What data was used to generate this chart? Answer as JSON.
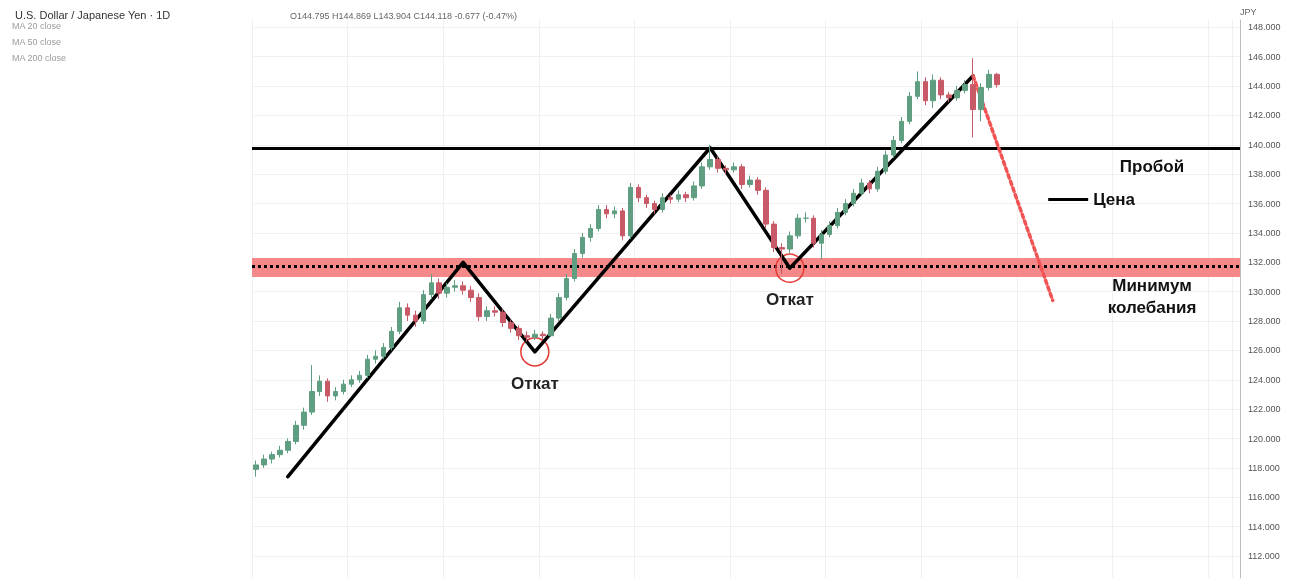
{
  "chart_data": {
    "type": "candlestick",
    "title": "U.S. Dollar / Japanese Yen · 1D",
    "subtitle": "O144.795 H144.869 L143.904 C144.118 -0.677 (-0.47%)",
    "ylabel": "JPY",
    "categories": [
      null,
      null,
      null,
      null,
      null,
      null,
      null,
      null,
      null,
      null,
      null,
      null,
      null,
      null,
      null,
      null,
      null,
      null,
      null,
      null,
      null,
      null,
      null,
      null,
      null,
      null,
      null,
      null,
      null,
      null,
      null,
      null,
      null,
      null,
      null,
      null,
      null,
      null,
      null,
      null,
      null,
      null,
      null,
      null,
      null,
      null,
      null,
      null,
      null,
      null,
      null,
      null,
      null,
      null,
      null,
      null,
      null,
      null,
      null,
      null,
      null,
      null,
      null,
      null,
      null,
      null,
      null,
      null,
      null,
      null,
      null,
      null,
      null,
      null,
      null,
      null,
      null,
      null,
      null,
      null,
      null,
      null,
      null,
      null,
      null,
      null,
      null,
      null,
      null,
      null,
      null,
      null,
      null,
      null,
      null,
      null,
      null,
      null,
      null,
      null,
      null,
      null,
      null,
      null,
      null,
      null,
      null,
      null,
      null,
      null,
      null,
      null,
      null,
      null,
      null,
      null,
      null,
      null,
      null,
      null,
      null,
      null,
      null,
      null
    ],
    "ohlc": [
      [
        117.9,
        118.5,
        117.4,
        118.2
      ],
      [
        118.2,
        118.9,
        118.0,
        118.6
      ],
      [
        118.6,
        119.1,
        118.3,
        118.9
      ],
      [
        118.9,
        119.5,
        118.7,
        119.2
      ],
      [
        119.2,
        120.0,
        119.0,
        119.8
      ],
      [
        119.8,
        121.2,
        119.6,
        120.9
      ],
      [
        120.9,
        122.1,
        120.6,
        121.8
      ],
      [
        121.8,
        125.0,
        121.6,
        123.2
      ],
      [
        123.2,
        124.3,
        122.9,
        123.9
      ],
      [
        123.9,
        124.1,
        122.5,
        122.9
      ],
      [
        122.9,
        123.5,
        122.6,
        123.2
      ],
      [
        123.2,
        124.0,
        123.0,
        123.7
      ],
      [
        123.7,
        124.3,
        123.5,
        124.0
      ],
      [
        124.0,
        124.6,
        123.8,
        124.3
      ],
      [
        124.3,
        125.7,
        124.1,
        125.4
      ],
      [
        125.4,
        126.0,
        125.1,
        125.6
      ],
      [
        125.6,
        126.5,
        125.4,
        126.2
      ],
      [
        126.2,
        127.6,
        126.0,
        127.3
      ],
      [
        127.3,
        129.3,
        127.1,
        128.9
      ],
      [
        128.9,
        129.2,
        128.0,
        128.4
      ],
      [
        128.4,
        128.7,
        127.6,
        128.0
      ],
      [
        128.0,
        130.1,
        127.8,
        129.8
      ],
      [
        129.8,
        131.2,
        129.5,
        130.6
      ],
      [
        130.6,
        130.9,
        129.5,
        129.9
      ],
      [
        129.9,
        130.6,
        129.6,
        130.3
      ],
      [
        130.3,
        130.8,
        130.0,
        130.4
      ],
      [
        130.4,
        130.7,
        129.8,
        130.1
      ],
      [
        130.1,
        130.4,
        129.3,
        129.6
      ],
      [
        129.6,
        129.9,
        128.0,
        128.3
      ],
      [
        128.3,
        129.0,
        128.0,
        128.7
      ],
      [
        128.7,
        129.0,
        128.3,
        128.6
      ],
      [
        128.6,
        128.8,
        127.6,
        127.9
      ],
      [
        127.9,
        128.1,
        127.2,
        127.5
      ],
      [
        127.5,
        127.7,
        126.7,
        127.0
      ],
      [
        127.0,
        127.3,
        126.6,
        126.9
      ],
      [
        126.9,
        127.4,
        126.7,
        127.1
      ],
      [
        127.1,
        127.3,
        126.7,
        127.0
      ],
      [
        127.0,
        128.5,
        126.9,
        128.2
      ],
      [
        128.2,
        129.9,
        128.0,
        129.6
      ],
      [
        129.6,
        131.2,
        129.4,
        130.9
      ],
      [
        130.9,
        132.9,
        130.7,
        132.6
      ],
      [
        132.6,
        134.0,
        132.3,
        133.7
      ],
      [
        133.7,
        134.6,
        133.4,
        134.3
      ],
      [
        134.3,
        135.9,
        134.1,
        135.6
      ],
      [
        135.6,
        135.9,
        135.0,
        135.3
      ],
      [
        135.3,
        135.8,
        135.0,
        135.5
      ],
      [
        135.5,
        135.7,
        133.5,
        133.8
      ],
      [
        133.8,
        137.4,
        133.6,
        137.1
      ],
      [
        137.1,
        137.3,
        136.1,
        136.4
      ],
      [
        136.4,
        136.6,
        135.7,
        136.0
      ],
      [
        136.0,
        136.2,
        135.3,
        135.6
      ],
      [
        135.6,
        136.7,
        135.4,
        136.4
      ],
      [
        136.4,
        136.6,
        136.0,
        136.3
      ],
      [
        136.3,
        136.9,
        136.1,
        136.6
      ],
      [
        136.6,
        136.8,
        136.1,
        136.4
      ],
      [
        136.4,
        137.5,
        136.2,
        137.2
      ],
      [
        137.2,
        138.8,
        137.0,
        138.5
      ],
      [
        138.5,
        140.0,
        138.3,
        139.0
      ],
      [
        139.0,
        139.2,
        138.1,
        138.4
      ],
      [
        138.4,
        138.6,
        138.0,
        138.3
      ],
      [
        138.3,
        138.8,
        138.1,
        138.5
      ],
      [
        138.5,
        138.7,
        137.0,
        137.3
      ],
      [
        137.3,
        137.9,
        137.1,
        137.6
      ],
      [
        137.6,
        137.8,
        136.6,
        136.9
      ],
      [
        136.9,
        137.1,
        134.3,
        134.6
      ],
      [
        134.6,
        134.8,
        132.7,
        133.0
      ],
      [
        133.0,
        133.3,
        131.2,
        132.9
      ],
      [
        132.9,
        134.1,
        132.6,
        133.8
      ],
      [
        133.8,
        135.3,
        133.6,
        135.0
      ],
      [
        135.0,
        135.4,
        134.7,
        135.0
      ],
      [
        135.0,
        135.2,
        133.0,
        133.3
      ],
      [
        133.3,
        134.2,
        132.2,
        133.9
      ],
      [
        133.9,
        134.8,
        133.7,
        134.5
      ],
      [
        134.5,
        135.7,
        134.3,
        135.4
      ],
      [
        135.4,
        136.3,
        135.2,
        136.0
      ],
      [
        136.0,
        137.0,
        135.8,
        136.7
      ],
      [
        136.7,
        137.7,
        136.5,
        137.4
      ],
      [
        137.4,
        137.6,
        136.7,
        137.0
      ],
      [
        137.0,
        138.5,
        136.8,
        138.2
      ],
      [
        138.2,
        139.6,
        138.0,
        139.3
      ],
      [
        139.3,
        140.6,
        139.1,
        140.3
      ],
      [
        140.3,
        141.9,
        140.1,
        141.6
      ],
      [
        141.6,
        143.6,
        141.4,
        143.3
      ],
      [
        143.3,
        145.0,
        143.1,
        144.3
      ],
      [
        144.3,
        144.6,
        142.7,
        143.0
      ],
      [
        143.0,
        144.8,
        142.5,
        144.4
      ],
      [
        144.4,
        144.6,
        143.1,
        143.4
      ],
      [
        143.4,
        143.6,
        142.9,
        143.2
      ],
      [
        143.2,
        144.0,
        143.0,
        143.7
      ],
      [
        143.7,
        144.4,
        143.5,
        144.1
      ],
      [
        144.1,
        145.9,
        140.5,
        142.4
      ],
      [
        142.4,
        144.2,
        141.6,
        143.9
      ],
      [
        143.9,
        145.1,
        143.7,
        144.8
      ],
      [
        144.8,
        144.9,
        143.9,
        144.1
      ],
      null,
      null,
      null,
      null,
      null,
      null,
      null,
      null,
      null,
      null,
      null,
      null,
      null,
      null,
      null,
      null,
      null,
      null,
      null,
      null,
      null,
      null,
      null,
      null,
      null,
      null,
      null,
      null,
      null,
      null
    ],
    "series": [
      {
        "name": "Цена",
        "type": "line",
        "color": "#000000",
        "values": [
          null,
          null,
          null,
          null,
          117.4,
          null,
          null,
          null,
          null,
          null,
          null,
          null,
          null,
          null,
          null,
          null,
          null,
          null,
          null,
          null,
          null,
          null,
          null,
          null,
          null,
          null,
          132.0,
          null,
          null,
          null,
          null,
          null,
          null,
          null,
          null,
          125.9,
          null,
          null,
          null,
          null,
          null,
          null,
          null,
          null,
          null,
          null,
          null,
          null,
          null,
          null,
          null,
          null,
          null,
          null,
          null,
          null,
          null,
          139.8,
          null,
          null,
          null,
          null,
          null,
          null,
          null,
          null,
          null,
          131.6,
          null,
          null,
          null,
          null,
          null,
          null,
          null,
          null,
          null,
          null,
          null,
          null,
          null,
          null,
          null,
          null,
          null,
          null,
          null,
          null,
          null,
          null,
          144.7,
          null,
          null,
          null,
          null,
          null,
          null,
          null,
          null,
          null,
          null,
          null,
          null,
          null,
          null,
          null,
          null,
          null,
          null,
          null,
          null,
          null,
          null,
          null,
          null,
          null,
          null,
          null,
          null,
          null,
          null,
          null,
          null,
          null
        ]
      },
      {
        "type": "line",
        "color": "#f05454",
        "line_style": "dotted",
        "values": [
          null,
          null,
          null,
          null,
          null,
          null,
          null,
          null,
          null,
          null,
          null,
          null,
          null,
          null,
          null,
          null,
          null,
          null,
          null,
          null,
          null,
          null,
          null,
          null,
          null,
          null,
          null,
          null,
          null,
          null,
          null,
          null,
          null,
          null,
          null,
          null,
          null,
          null,
          null,
          null,
          null,
          null,
          null,
          null,
          null,
          null,
          null,
          null,
          null,
          null,
          null,
          null,
          null,
          null,
          null,
          null,
          null,
          null,
          null,
          null,
          null,
          null,
          null,
          null,
          null,
          null,
          null,
          null,
          null,
          null,
          null,
          null,
          null,
          null,
          null,
          null,
          null,
          null,
          null,
          null,
          null,
          null,
          null,
          null,
          null,
          null,
          null,
          null,
          null,
          null,
          144.7,
          null,
          null,
          null,
          null,
          null,
          null,
          null,
          null,
          null,
          129.4,
          null,
          null,
          null,
          null,
          null,
          null,
          null,
          null,
          null,
          null,
          null,
          null,
          null,
          null,
          null,
          null,
          null,
          null,
          null,
          null,
          null,
          null,
          null
        ]
      }
    ],
    "ref_lines": [
      {
        "axis": "y",
        "value": 139.8,
        "label": "Пробой",
        "color": "#000000",
        "line_style": "solid"
      },
      {
        "axis": "y",
        "value": 131.7,
        "label": "Минимум колебания",
        "color": "#000000",
        "line_style": "dotted"
      }
    ],
    "bands": [
      {
        "axis": "y",
        "from": 131.0,
        "to": 132.3,
        "color": "#f47c7c"
      }
    ],
    "annotations": [
      "MA 20 close",
      "MA 50 close",
      "MA 200 close",
      {
        "text": "Откат",
        "y": 125.9
      },
      {
        "text": "Откат",
        "y": 131.6
      }
    ],
    "ylim": [
      110.5,
      148.5
    ],
    "yticks": [
      {
        "value": 112,
        "label": "112.000"
      },
      {
        "value": 114,
        "label": "114.000"
      },
      {
        "value": 116,
        "label": "116.000"
      },
      {
        "value": 118,
        "label": "118.000"
      },
      {
        "value": 120,
        "label": "120.000"
      },
      {
        "value": 122,
        "label": "122.000"
      },
      {
        "value": 124,
        "label": "124.000"
      },
      {
        "value": 126,
        "label": "126.000"
      },
      {
        "value": 128,
        "label": "128.000"
      },
      {
        "value": 130,
        "label": "130.000"
      },
      {
        "value": 132,
        "label": "132.000"
      },
      {
        "value": 134,
        "label": "134.000"
      },
      {
        "value": 136,
        "label": "136.000"
      },
      {
        "value": 138,
        "label": "138.000"
      },
      {
        "value": 140,
        "label": "140.000"
      },
      {
        "value": 142,
        "label": "142.000"
      },
      {
        "value": 144,
        "label": "144.000"
      },
      {
        "value": 146,
        "label": "146.000"
      },
      {
        "value": 148,
        "label": "148.000"
      }
    ],
    "tick_labels": "y",
    "grid": true,
    "legend": "right"
  }
}
